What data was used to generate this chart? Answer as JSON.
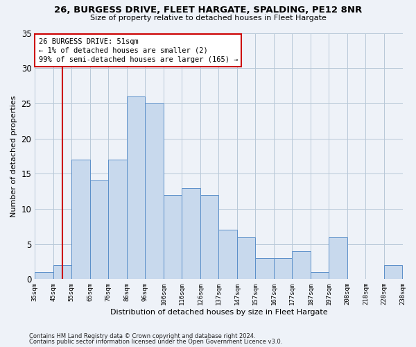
{
  "title": "26, BURGESS DRIVE, FLEET HARGATE, SPALDING, PE12 8NR",
  "subtitle": "Size of property relative to detached houses in Fleet Hargate",
  "xlabel": "Distribution of detached houses by size in Fleet Hargate",
  "ylabel": "Number of detached properties",
  "bar_values": [
    1,
    2,
    17,
    14,
    17,
    26,
    25,
    12,
    13,
    12,
    7,
    6,
    3,
    3,
    4,
    1,
    6,
    0,
    0,
    2
  ],
  "bin_labels": [
    "35sqm",
    "45sqm",
    "55sqm",
    "65sqm",
    "76sqm",
    "86sqm",
    "96sqm",
    "106sqm",
    "116sqm",
    "126sqm",
    "137sqm",
    "147sqm",
    "157sqm",
    "167sqm",
    "177sqm",
    "187sqm",
    "197sqm",
    "208sqm",
    "218sqm",
    "228sqm",
    "238sqm"
  ],
  "bar_color": "#c8d9ed",
  "bar_edge_color": "#5b8fc9",
  "grid_color": "#b8c8d8",
  "vline_x_index": 1.5,
  "vline_color": "#cc0000",
  "annotation_text": "26 BURGESS DRIVE: 51sqm\n← 1% of detached houses are smaller (2)\n99% of semi-detached houses are larger (165) →",
  "annotation_box_color": "#cc0000",
  "annotation_fill": "#ffffff",
  "ylim": [
    0,
    35
  ],
  "yticks": [
    0,
    5,
    10,
    15,
    20,
    25,
    30,
    35
  ],
  "footnote1": "Contains HM Land Registry data © Crown copyright and database right 2024.",
  "footnote2": "Contains public sector information licensed under the Open Government Licence v3.0.",
  "background_color": "#eef2f8"
}
